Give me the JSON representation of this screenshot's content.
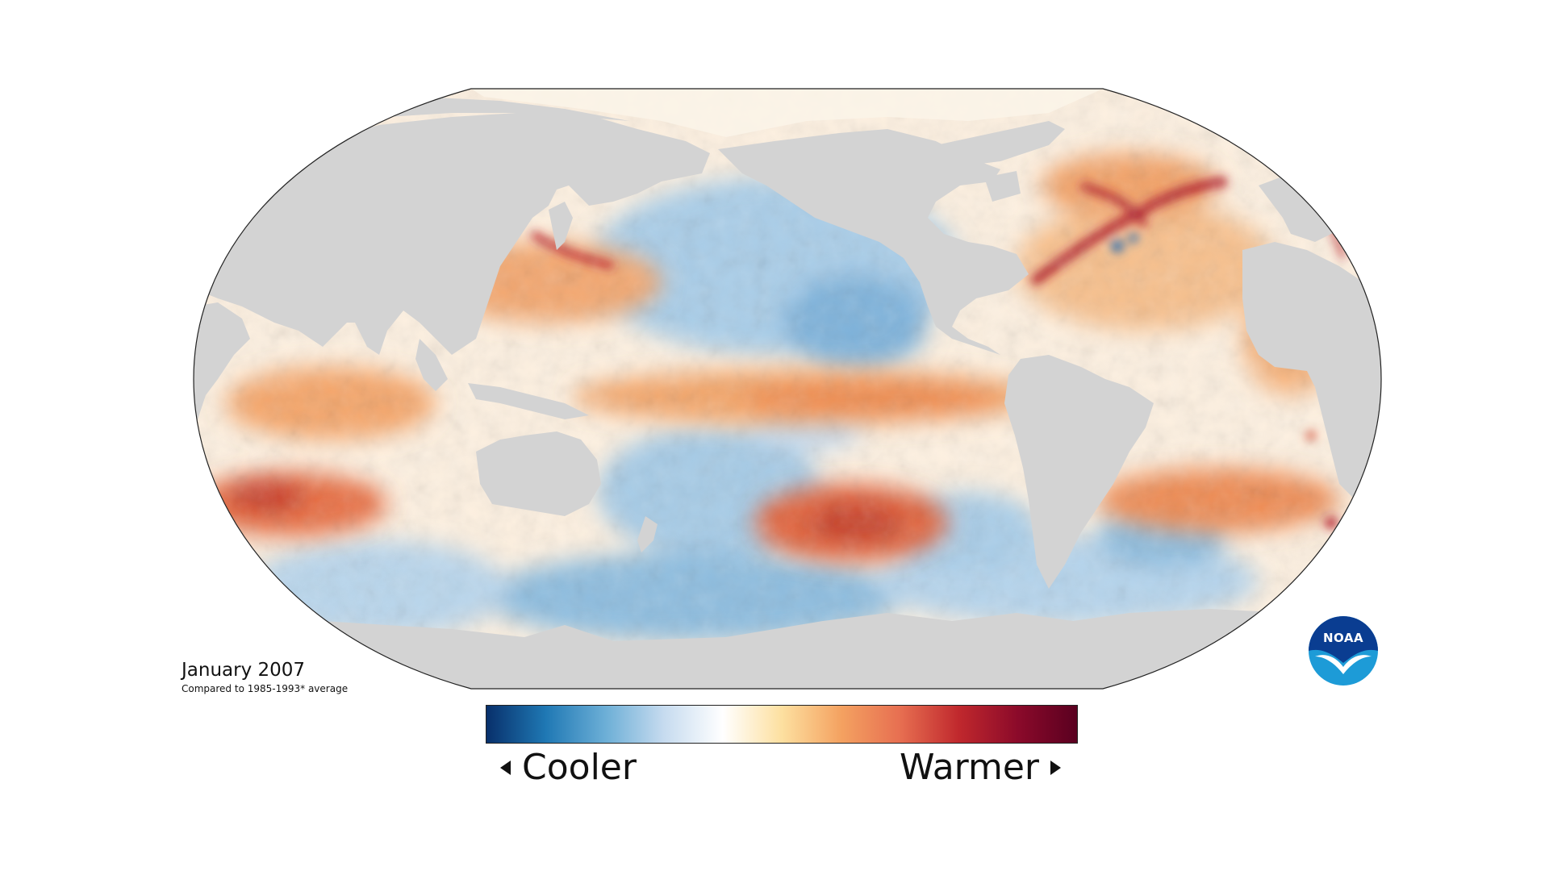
{
  "map": {
    "projection": "robinson",
    "center_longitude": 150,
    "land_color": "#d3d3d3",
    "outline_color": "#222222",
    "variable": "sea surface temperature anomaly"
  },
  "caption": {
    "title": "January 2007",
    "subtitle": "Compared to 1985-1993* average"
  },
  "legend": {
    "cool_label": "Cooler",
    "warm_label": "Warmer",
    "gradient": [
      "#08306b",
      "#1f78b4",
      "#6baed6",
      "#c6dbef",
      "#ffffff",
      "#fde0a0",
      "#f4a261",
      "#e76f51",
      "#c0282d",
      "#8b0a2a",
      "#5a0020"
    ]
  },
  "logo": {
    "text": "NOAA",
    "colors": [
      "#0a3d91",
      "#1d9bd7",
      "#ffffff"
    ]
  },
  "anomaly_regions": [
    {
      "name": "equatorial-pacific-warm",
      "tone": "warm"
    },
    {
      "name": "south-pacific-warm",
      "tone": "warm"
    },
    {
      "name": "north-pacific-cool",
      "tone": "cool"
    },
    {
      "name": "southern-ocean-cool",
      "tone": "cool"
    },
    {
      "name": "gulf-stream-warm",
      "tone": "warm"
    },
    {
      "name": "indian-ocean-warm",
      "tone": "warm"
    },
    {
      "name": "south-atlantic-warm",
      "tone": "warm"
    }
  ]
}
